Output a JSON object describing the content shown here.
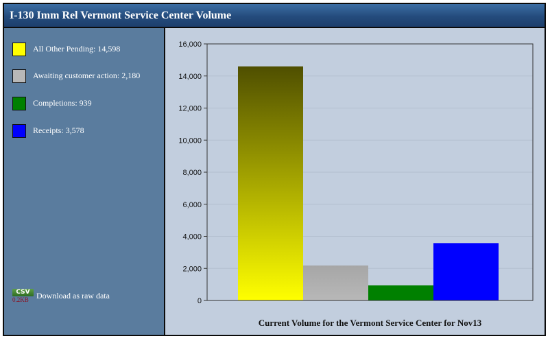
{
  "title": "I-130 Imm Rel Vermont Service Center Volume",
  "download": {
    "badge": "CSV",
    "size": "0.2KB",
    "label": "Download as raw data"
  },
  "legend": [
    {
      "label": "All Other Pending: 14,598",
      "color": "#ffff00"
    },
    {
      "label": "Awaiting customer action: 2,180",
      "color": "#b8b8b8"
    },
    {
      "label": "Completions: 939",
      "color": "#008000"
    },
    {
      "label": "Receipts: 3,578",
      "color": "#0000ff"
    }
  ],
  "chart_data": {
    "type": "bar",
    "categories": [
      "All Other Pending",
      "Awaiting customer action",
      "Completions",
      "Receipts"
    ],
    "values": [
      14598,
      2180,
      939,
      3578
    ],
    "colors": [
      "#ffff00",
      "#b8b8b8",
      "#008000",
      "#0000ff"
    ],
    "xlabel": "Current Volume for the Vermont Service Center for Nov13",
    "ylabel": "",
    "ylim": [
      0,
      16000
    ],
    "yticks": [
      0,
      2000,
      4000,
      6000,
      8000,
      10000,
      12000,
      14000,
      16000
    ],
    "ytick_labels": [
      "0",
      "2,000",
      "4,000",
      "6,000",
      "8,000",
      "10,000",
      "12,000",
      "14,000",
      "16,000"
    ],
    "grid": true,
    "legend_position": "left"
  }
}
